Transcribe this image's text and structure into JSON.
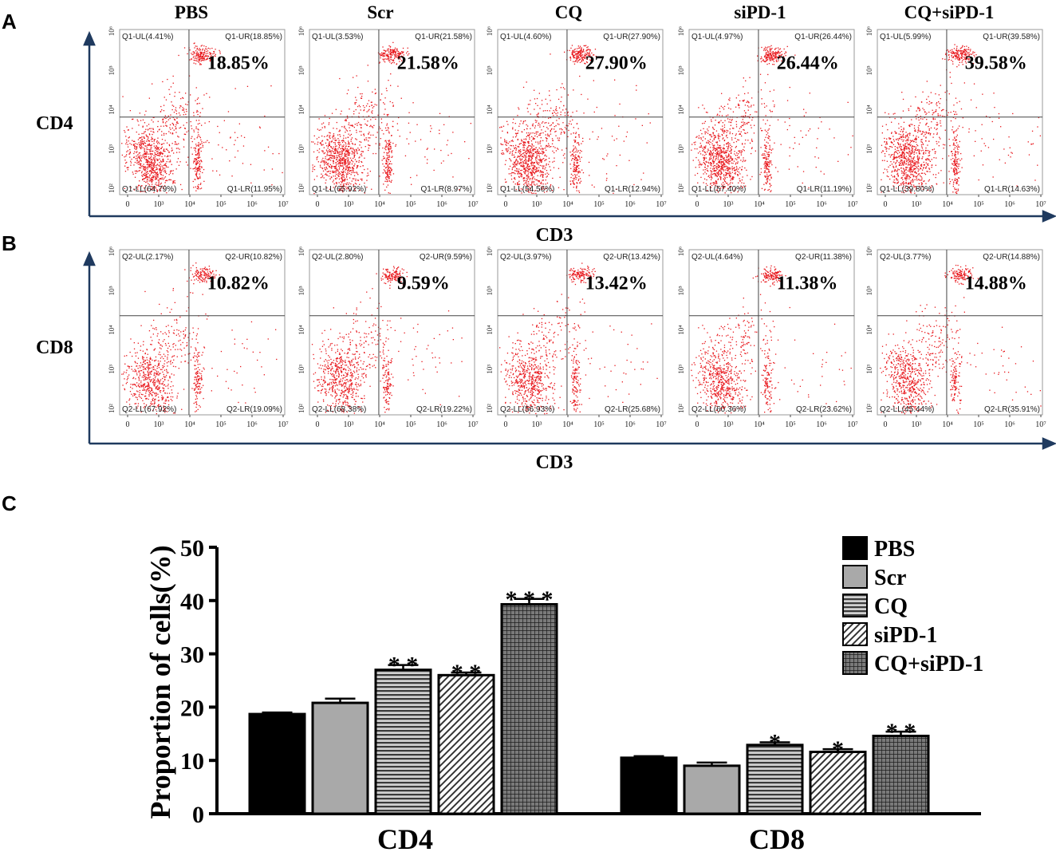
{
  "panels": {
    "a_label": "A",
    "b_label": "B",
    "c_label": "C"
  },
  "flow": {
    "column_titles": [
      "PBS",
      "Scr",
      "CQ",
      "siPD-1",
      "CQ+siPD-1"
    ],
    "x_axis_label": "CD3",
    "x_tick_labels": [
      "0",
      "10³",
      "10⁴",
      "10⁵",
      "10⁶",
      "10⁷"
    ],
    "y_tick_labels": [
      "10²",
      "10³",
      "10⁴",
      "10⁵",
      "10⁶"
    ],
    "rows": [
      {
        "marker": "CD4",
        "plots": [
          {
            "ul": "Q1-UL(4.41%)",
            "ur": "Q1-UR(18.85%)",
            "ll": "Q1-LL(64.79%)",
            "lr": "Q1-LR(11.95%)",
            "big": "18.85%"
          },
          {
            "ul": "Q1-UL(3.53%)",
            "ur": "Q1-UR(21.58%)",
            "ll": "Q1-LL(65.92%)",
            "lr": "Q1-LR(8.97%)",
            "big": "21.58%"
          },
          {
            "ul": "Q1-UL(4.60%)",
            "ur": "Q1-UR(27.90%)",
            "ll": "Q1-LL(54.56%)",
            "lr": "Q1-LR(12.94%)",
            "big": "27.90%"
          },
          {
            "ul": "Q1-UL(4.97%)",
            "ur": "Q1-UR(26.44%)",
            "ll": "Q1-LL(57.40%)",
            "lr": "Q1-LR(11.19%)",
            "big": "26.44%"
          },
          {
            "ul": "Q1-UL(5.99%)",
            "ur": "Q1-UR(39.58%)",
            "ll": "Q1-LL(39.80%)",
            "lr": "Q1-LR(14.63%)",
            "big": "39.58%"
          }
        ]
      },
      {
        "marker": "CD8",
        "plots": [
          {
            "ul": "Q2-UL(2.17%)",
            "ur": "Q2-UR(10.82%)",
            "ll": "Q2-LL(67.92%)",
            "lr": "Q2-LR(19.09%)",
            "big": "10.82%"
          },
          {
            "ul": "Q2-UL(2.80%)",
            "ur": "Q2-UR(9.59%)",
            "ll": "Q2-LL(68.38%)",
            "lr": "Q2-LR(19.22%)",
            "big": "9.59%"
          },
          {
            "ul": "Q2-UL(3.97%)",
            "ur": "Q2-UR(13.42%)",
            "ll": "Q2-LL(56.93%)",
            "lr": "Q2-LR(25.68%)",
            "big": "13.42%"
          },
          {
            "ul": "Q2-UL(4.64%)",
            "ur": "Q2-UR(11.38%)",
            "ll": "Q2-LL(60.36%)",
            "lr": "Q2-LR(23.62%)",
            "big": "11.38%"
          },
          {
            "ul": "Q2-UL(3.77%)",
            "ur": "Q2-UR(14.88%)",
            "ll": "Q2-LL(45.44%)",
            "lr": "Q2-LR(35.91%)",
            "big": "14.88%"
          }
        ]
      }
    ]
  },
  "chart_data": {
    "type": "bar",
    "title": "",
    "xlabel": "",
    "ylabel": "Proportion of cells(%)",
    "ylim": [
      0,
      50
    ],
    "yticks": [
      0,
      10,
      20,
      30,
      40,
      50
    ],
    "categories": [
      "CD4",
      "CD8"
    ],
    "legend_position": "top-right",
    "series": [
      {
        "name": "PBS",
        "values": [
          18.7,
          10.5
        ],
        "errors": [
          0.3,
          0.3
        ],
        "sig": [
          "",
          ""
        ],
        "color": "#000000",
        "pattern": "solid"
      },
      {
        "name": "Scr",
        "values": [
          20.8,
          9.0
        ],
        "errors": [
          0.8,
          0.6
        ],
        "sig": [
          "",
          ""
        ],
        "color": "#a9a9a9",
        "pattern": "solid"
      },
      {
        "name": "CQ",
        "values": [
          27.0,
          12.9
        ],
        "errors": [
          0.9,
          0.5
        ],
        "sig": [
          "**",
          "*"
        ],
        "color": "#8c8c8c",
        "pattern": "hstripe"
      },
      {
        "name": "siPD-1",
        "values": [
          26.0,
          11.6
        ],
        "errors": [
          0.5,
          0.5
        ],
        "sig": [
          "**",
          "*"
        ],
        "color": "#ffffff",
        "pattern": "diag"
      },
      {
        "name": "CQ+siPD-1",
        "values": [
          39.3,
          14.6
        ],
        "errors": [
          1.0,
          0.8
        ],
        "sig": [
          "***",
          "**"
        ],
        "color": "#6e6e6e",
        "pattern": "grid"
      }
    ]
  }
}
